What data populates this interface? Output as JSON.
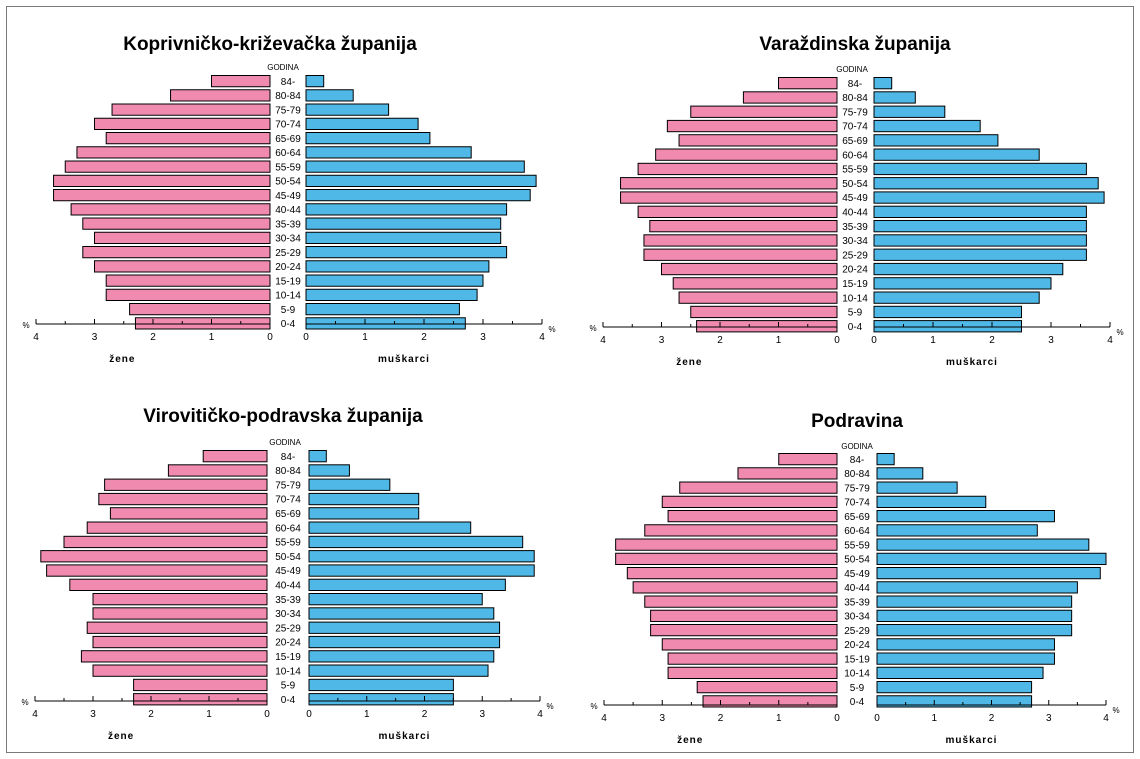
{
  "chart_data": [
    {
      "type": "bar",
      "title": "Koprivničko-križevačka županija",
      "age_axis_label": "GODINA",
      "unit_label": "%",
      "categories": [
        "84-",
        "80-84",
        "75-79",
        "70-74",
        "65-69",
        "60-64",
        "55-59",
        "50-54",
        "45-49",
        "40-44",
        "35-39",
        "30-34",
        "25-29",
        "20-24",
        "15-19",
        "10-14",
        "5-9",
        "0-4"
      ],
      "series": [
        {
          "name": "žene",
          "values": [
            1.0,
            1.7,
            2.7,
            3.0,
            2.8,
            3.3,
            3.5,
            3.7,
            3.7,
            3.4,
            3.2,
            3.0,
            3.2,
            3.0,
            2.8,
            2.8,
            2.4,
            2.3
          ]
        },
        {
          "name": "muškarci",
          "values": [
            0.3,
            0.8,
            1.4,
            1.9,
            2.1,
            2.8,
            3.7,
            3.9,
            3.8,
            3.4,
            3.3,
            3.3,
            3.4,
            3.1,
            3.0,
            2.9,
            2.6,
            2.7
          ]
        }
      ],
      "xlim": [
        0,
        4
      ],
      "x_ticks": [
        "4",
        "3",
        "2",
        "1",
        "0",
        "0",
        "1",
        "2",
        "3",
        "4"
      ]
    },
    {
      "type": "bar",
      "title": "Varaždinska županija",
      "age_axis_label": "GODINA",
      "unit_label": "%",
      "categories": [
        "84-",
        "80-84",
        "75-79",
        "70-74",
        "65-69",
        "60-64",
        "55-59",
        "50-54",
        "45-49",
        "40-44",
        "35-39",
        "30-34",
        "25-29",
        "20-24",
        "15-19",
        "10-14",
        "5-9",
        "0-4"
      ],
      "series": [
        {
          "name": "žene",
          "values": [
            1.0,
            1.6,
            2.5,
            2.9,
            2.7,
            3.1,
            3.4,
            3.7,
            3.7,
            3.4,
            3.2,
            3.3,
            3.3,
            3.0,
            2.8,
            2.7,
            2.5,
            2.4
          ]
        },
        {
          "name": "muškarci",
          "values": [
            0.3,
            0.7,
            1.2,
            1.8,
            2.1,
            2.8,
            3.6,
            3.8,
            3.9,
            3.6,
            3.6,
            3.6,
            3.6,
            3.2,
            3.0,
            2.8,
            2.5,
            2.5
          ]
        }
      ],
      "xlim": [
        0,
        4
      ],
      "x_ticks": [
        "4",
        "3",
        "2",
        "1",
        "0",
        "0",
        "1",
        "2",
        "3",
        "4"
      ]
    },
    {
      "type": "bar",
      "title": "Virovitičko-podravska županija",
      "age_axis_label": "GODINA",
      "unit_label": "%",
      "categories": [
        "84-",
        "80-84",
        "75-79",
        "70-74",
        "65-69",
        "60-64",
        "55-59",
        "50-54",
        "45-49",
        "40-44",
        "35-39",
        "30-34",
        "25-29",
        "20-24",
        "15-19",
        "10-14",
        "5-9",
        "0-4"
      ],
      "series": [
        {
          "name": "žene",
          "values": [
            1.1,
            1.7,
            2.8,
            2.9,
            2.7,
            3.1,
            3.5,
            3.9,
            3.8,
            3.4,
            3.0,
            3.0,
            3.1,
            3.0,
            3.2,
            3.0,
            2.3,
            2.3
          ]
        },
        {
          "name": "muškarci",
          "values": [
            0.3,
            0.7,
            1.4,
            1.9,
            1.9,
            2.8,
            3.7,
            3.9,
            3.9,
            3.4,
            3.0,
            3.2,
            3.3,
            3.3,
            3.2,
            3.1,
            2.5,
            2.5
          ]
        }
      ],
      "xlim": [
        0,
        4
      ],
      "x_ticks": [
        "4",
        "3",
        "2",
        "1",
        "0",
        "0",
        "1",
        "2",
        "3",
        "4"
      ]
    },
    {
      "type": "bar",
      "title": "Podravina",
      "age_axis_label": "GODINA",
      "unit_label": "%",
      "categories": [
        "84-",
        "80-84",
        "75-79",
        "70-74",
        "65-69",
        "60-64",
        "55-59",
        "50-54",
        "45-49",
        "40-44",
        "35-39",
        "30-34",
        "25-29",
        "20-24",
        "15-19",
        "10-14",
        "5-9",
        "0-4"
      ],
      "series": [
        {
          "name": "žene",
          "values": [
            1.0,
            1.7,
            2.7,
            3.0,
            2.9,
            3.3,
            3.8,
            3.8,
            3.6,
            3.5,
            3.3,
            3.2,
            3.2,
            3.0,
            2.9,
            2.9,
            2.4,
            2.3
          ]
        },
        {
          "name": "muškarci",
          "values": [
            0.3,
            0.8,
            1.4,
            1.9,
            3.1,
            2.8,
            3.7,
            4.0,
            3.9,
            3.5,
            3.4,
            3.4,
            3.4,
            3.1,
            3.1,
            2.9,
            2.7,
            2.7
          ]
        }
      ],
      "xlim": [
        0,
        4
      ],
      "x_ticks": [
        "4",
        "3",
        "2",
        "1",
        "0",
        "0",
        "1",
        "2",
        "3",
        "4"
      ]
    }
  ],
  "colors": {
    "female_fill": "#f08aaf",
    "male_fill": "#4fb8e6",
    "bar_stroke": "#000000"
  }
}
